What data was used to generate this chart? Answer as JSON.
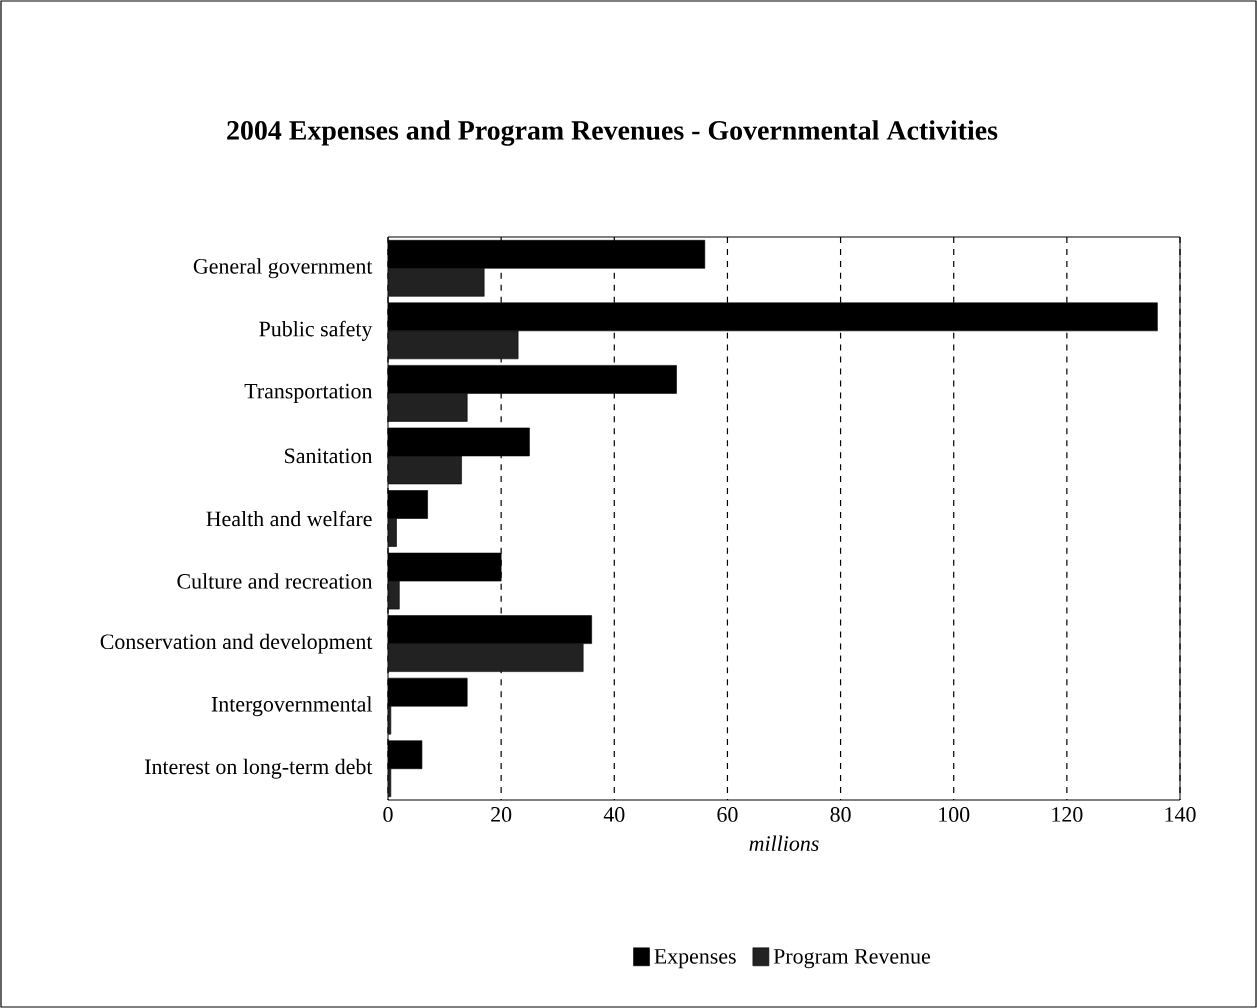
{
  "chart_data": {
    "type": "bar",
    "orientation": "horizontal",
    "title": "2004 Expenses and Program Revenues - Governmental Activities",
    "categories": [
      "General government",
      "Public safety",
      "Transportation",
      "Sanitation",
      "Health and welfare",
      "Culture and recreation",
      "Conservation and development",
      "Intergovernmental",
      "Interest on long-term debt"
    ],
    "series": [
      {
        "name": "Expenses",
        "color": "#000000",
        "values": [
          56,
          136,
          51,
          25,
          7,
          20,
          36,
          14,
          6
        ]
      },
      {
        "name": "Program Revenue",
        "color": "#222222",
        "values": [
          17,
          23,
          14,
          13,
          1.5,
          2,
          34.5,
          0.5,
          0.5
        ]
      }
    ],
    "xlabel": "millions",
    "xlim": [
      0,
      140
    ],
    "xticks": [
      0,
      20,
      40,
      60,
      80,
      100,
      120,
      140
    ],
    "grid": "x",
    "legend": "bottom"
  }
}
